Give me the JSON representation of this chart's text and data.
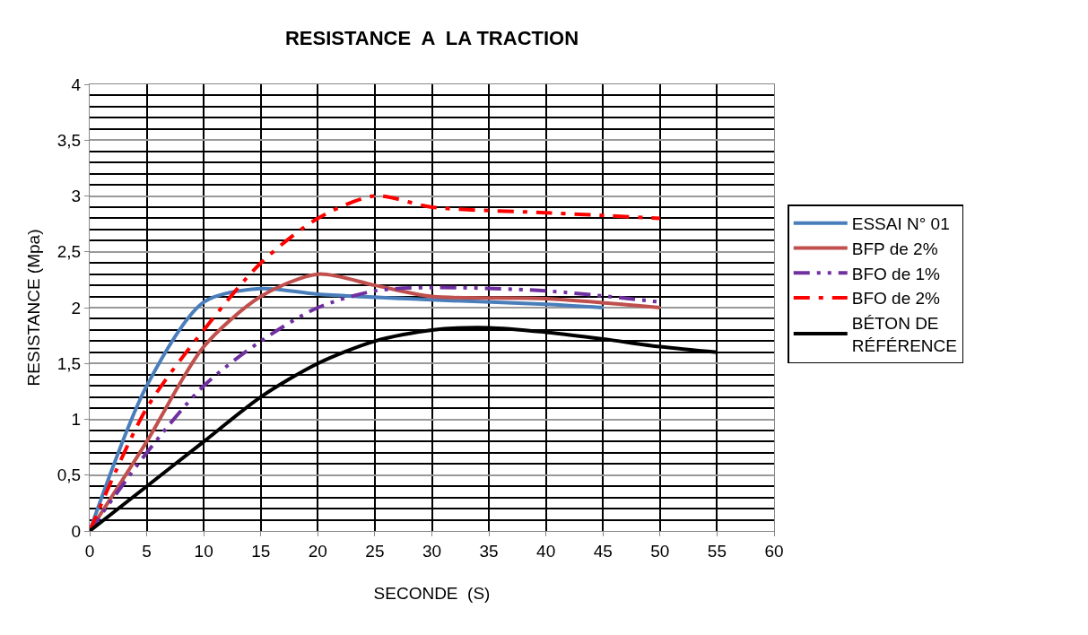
{
  "chart_data": {
    "type": "line",
    "title": "RESISTANCE  A  LA TRACTION",
    "xlabel": "SECONDE  (S)",
    "ylabel": "RESISTANCE (Mpa)",
    "xlim": [
      0,
      60
    ],
    "xticks": [
      0,
      5,
      10,
      15,
      20,
      25,
      30,
      35,
      40,
      45,
      50,
      55,
      60
    ],
    "ylim": [
      0,
      4
    ],
    "yticks": [
      0,
      {
        "value": 0.5,
        "label": "0,5"
      },
      1,
      {
        "value": 1.5,
        "label": "1,5"
      },
      2,
      {
        "value": 2.5,
        "label": "2,5"
      },
      3,
      {
        "value": 3.5,
        "label": "3,5"
      },
      4
    ],
    "grid": true,
    "legend": "right",
    "marker": "none",
    "series": [
      {
        "name": "ESSAI N° 01",
        "color": "#4a7ebb",
        "line_style": "solid",
        "x": [
          0,
          5,
          10,
          15,
          20,
          30,
          40,
          45
        ],
        "values": [
          0,
          1.3,
          2.05,
          2.17,
          2.12,
          2.07,
          2.03,
          2.0
        ]
      },
      {
        "name": "BFP de 2%",
        "color": "#c0504d",
        "line_style": "solid",
        "x": [
          0,
          5,
          10,
          15,
          20,
          25,
          30,
          40,
          50
        ],
        "values": [
          0,
          0.8,
          1.65,
          2.1,
          2.3,
          2.2,
          2.1,
          2.08,
          2.0
        ]
      },
      {
        "name": "BFO de 1%",
        "color": "#7030a0",
        "line_style": "dashed",
        "x": [
          0,
          5,
          10,
          15,
          20,
          25,
          30,
          40,
          50
        ],
        "values": [
          0,
          0.7,
          1.3,
          1.7,
          2.0,
          2.15,
          2.18,
          2.15,
          2.05
        ]
      },
      {
        "name": "BFO de 2%",
        "color": "#ff0000",
        "line_style": "dotted",
        "x": [
          0,
          5,
          10,
          15,
          20,
          25,
          30,
          40,
          50
        ],
        "values": [
          0,
          1.1,
          1.8,
          2.4,
          2.8,
          3.0,
          2.9,
          2.85,
          2.8
        ]
      },
      {
        "name": "BÉTON DE RÉFÉRENCE",
        "color": "#000000",
        "line_style": "solid",
        "x": [
          0,
          5,
          10,
          15,
          20,
          25,
          30,
          35,
          40,
          45,
          50,
          55
        ],
        "values": [
          0,
          0.4,
          0.8,
          1.2,
          1.5,
          1.7,
          1.8,
          1.82,
          1.78,
          1.72,
          1.65,
          1.6
        ]
      }
    ]
  }
}
